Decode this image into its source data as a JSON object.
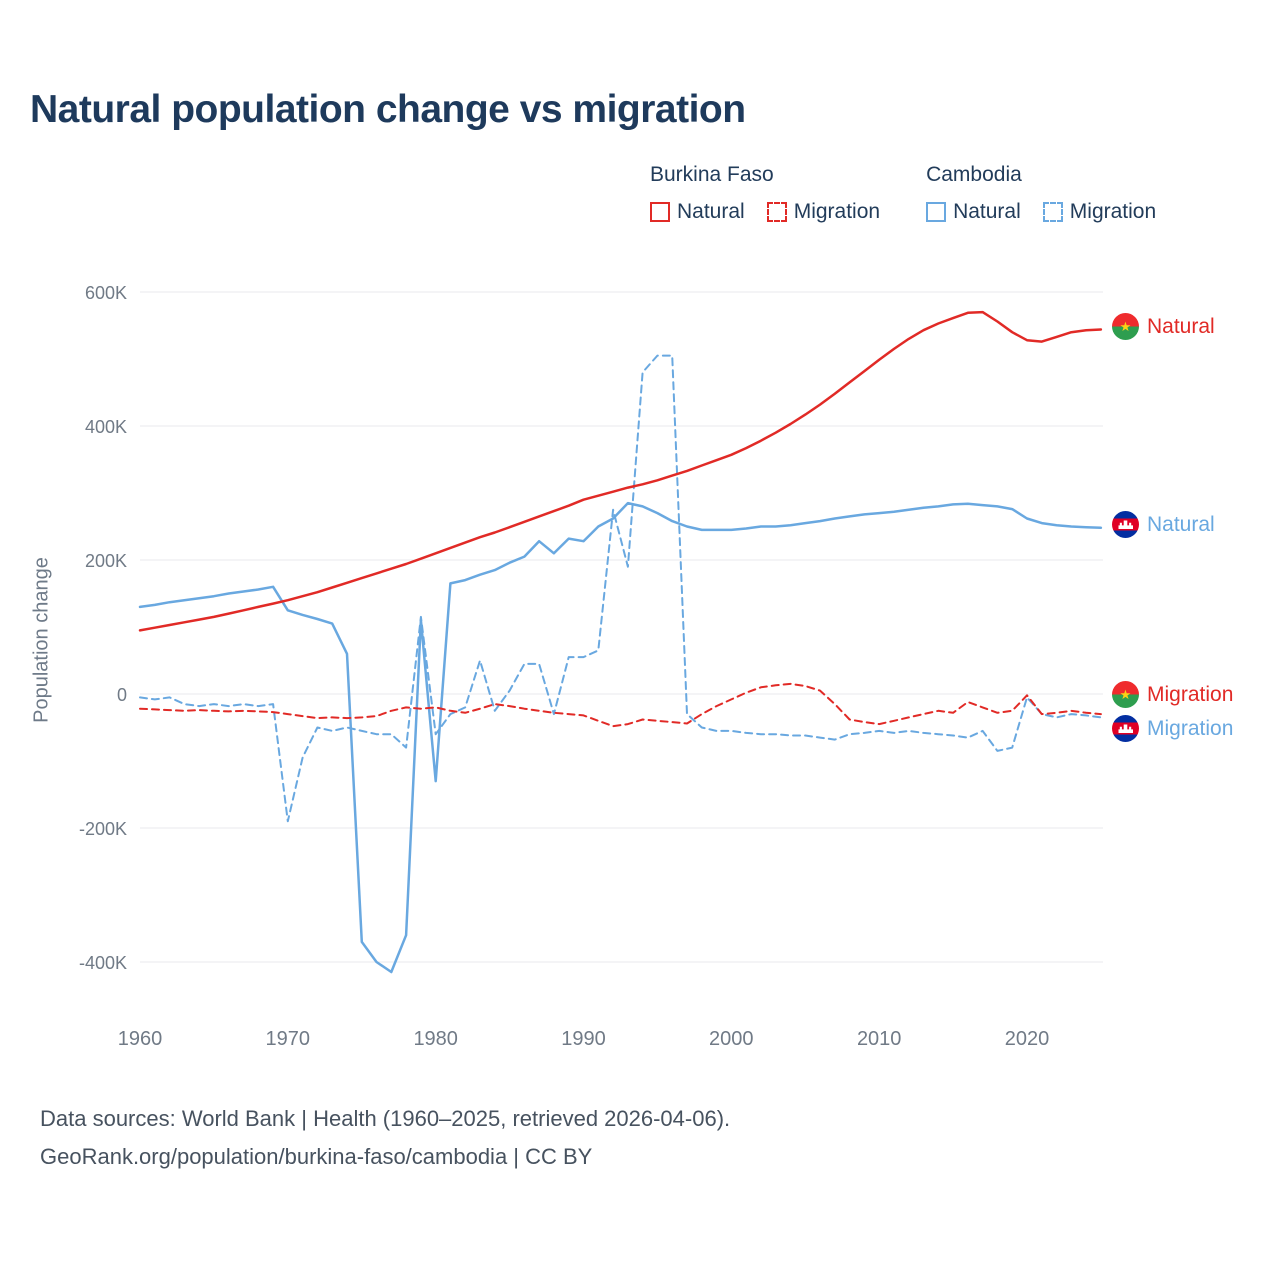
{
  "title": "Natural population change vs migration",
  "legend": {
    "groups": [
      {
        "country": "Burkina Faso",
        "items": [
          {
            "label": "Natural"
          },
          {
            "label": "Migration"
          }
        ]
      },
      {
        "country": "Cambodia",
        "items": [
          {
            "label": "Natural"
          },
          {
            "label": "Migration"
          }
        ]
      }
    ]
  },
  "end_labels": [
    {
      "label": "Natural",
      "country": "Burkina Faso"
    },
    {
      "label": "Natural",
      "country": "Cambodia"
    },
    {
      "label": "Migration",
      "country": "Burkina Faso"
    },
    {
      "label": "Migration",
      "country": "Cambodia"
    }
  ],
  "footer": {
    "line1": "Data sources: World Bank | Health (1960–2025, retrieved 2026-04-06).",
    "line2": "GeoRank.org/population/burkina-faso/cambodia | CC BY"
  },
  "colors": {
    "red": "#e12a26",
    "blue": "#69a8e0",
    "title": "#1e3a5c"
  },
  "chart_data": {
    "type": "line",
    "title": "Natural population change vs migration",
    "xlabel": "",
    "ylabel": "Population change",
    "unit": "people (thousands)",
    "grid": "horizontal",
    "legend_position": "top-right",
    "ylim": [
      -460,
      640
    ],
    "x": [
      1960,
      1961,
      1962,
      1963,
      1964,
      1965,
      1966,
      1967,
      1968,
      1969,
      1970,
      1971,
      1972,
      1973,
      1974,
      1975,
      1976,
      1977,
      1978,
      1979,
      1980,
      1981,
      1982,
      1983,
      1984,
      1985,
      1986,
      1987,
      1988,
      1989,
      1990,
      1991,
      1992,
      1993,
      1994,
      1995,
      1996,
      1997,
      1998,
      1999,
      2000,
      2001,
      2002,
      2003,
      2004,
      2005,
      2006,
      2007,
      2008,
      2009,
      2010,
      2011,
      2012,
      2013,
      2014,
      2015,
      2016,
      2017,
      2018,
      2019,
      2020,
      2021,
      2022,
      2023,
      2024,
      2025
    ],
    "x_ticks": [
      1960,
      1970,
      1980,
      1990,
      2000,
      2010,
      2020
    ],
    "y_ticks": [
      {
        "value": 600,
        "label": "600K"
      },
      {
        "value": 400,
        "label": "400K"
      },
      {
        "value": 200,
        "label": "200K"
      },
      {
        "value": 0,
        "label": "0"
      },
      {
        "value": -200,
        "label": "-200K"
      },
      {
        "value": -400,
        "label": "-400K"
      }
    ],
    "series": [
      {
        "id": "cambodia-natural",
        "name": "Cambodia Natural",
        "color": "#69a8e0",
        "style": "solid",
        "values": [
          130,
          133,
          137,
          140,
          143,
          146,
          150,
          153,
          156,
          160,
          125,
          118,
          112,
          105,
          60,
          -370,
          -400,
          -415,
          -360,
          110,
          -130,
          165,
          170,
          178,
          185,
          196,
          205,
          228,
          210,
          232,
          228,
          250,
          262,
          285,
          280,
          270,
          258,
          250,
          245,
          245,
          245,
          247,
          250,
          250,
          252,
          255,
          258,
          262,
          265,
          268,
          270,
          272,
          275,
          278,
          280,
          283,
          284,
          282,
          280,
          276,
          262,
          255,
          252,
          250,
          249,
          248
        ]
      },
      {
        "id": "cambodia-migration",
        "name": "Cambodia Migration",
        "color": "#69a8e0",
        "style": "dashed",
        "values": [
          -5,
          -8,
          -5,
          -15,
          -18,
          -15,
          -18,
          -15,
          -18,
          -15,
          -190,
          -95,
          -50,
          -55,
          -50,
          -55,
          -60,
          -60,
          -80,
          115,
          -60,
          -30,
          -20,
          50,
          -25,
          5,
          45,
          45,
          -30,
          55,
          55,
          65,
          275,
          190,
          480,
          505,
          505,
          -30,
          -50,
          -55,
          -55,
          -58,
          -60,
          -60,
          -62,
          -62,
          -65,
          -68,
          -60,
          -58,
          -55,
          -58,
          -55,
          -58,
          -60,
          -62,
          -65,
          -55,
          -85,
          -80,
          -5,
          -30,
          -35,
          -30,
          -32,
          -35
        ]
      },
      {
        "id": "burkina-faso-natural",
        "name": "Burkina Faso Natural",
        "color": "#e12a26",
        "style": "solid",
        "values": [
          95,
          99,
          103,
          107,
          111,
          115,
          120,
          125,
          130,
          135,
          140,
          146,
          152,
          159,
          166,
          173,
          180,
          187,
          194,
          202,
          210,
          218,
          226,
          234,
          241,
          249,
          257,
          265,
          273,
          281,
          290,
          296,
          302,
          308,
          313,
          319,
          326,
          333,
          341,
          349,
          357,
          367,
          378,
          390,
          403,
          417,
          432,
          448,
          465,
          482,
          499,
          515,
          530,
          543,
          553,
          561,
          569,
          570,
          556,
          540,
          528,
          526,
          533,
          540,
          543,
          544
        ]
      },
      {
        "id": "burkina-faso-migration",
        "name": "Burkina Faso Migration",
        "color": "#e12a26",
        "style": "dashed",
        "values": [
          -22,
          -23,
          -24,
          -25,
          -24,
          -25,
          -26,
          -25,
          -26,
          -27,
          -30,
          -33,
          -36,
          -35,
          -36,
          -35,
          -33,
          -25,
          -20,
          -22,
          -20,
          -25,
          -28,
          -22,
          -15,
          -18,
          -22,
          -25,
          -28,
          -30,
          -32,
          -40,
          -48,
          -45,
          -38,
          -40,
          -42,
          -44,
          -30,
          -18,
          -8,
          2,
          10,
          13,
          15,
          12,
          5,
          -15,
          -38,
          -42,
          -45,
          -40,
          -35,
          -30,
          -25,
          -28,
          -12,
          -20,
          -28,
          -25,
          -2,
          -30,
          -28,
          -25,
          -28,
          -30
        ]
      }
    ]
  }
}
